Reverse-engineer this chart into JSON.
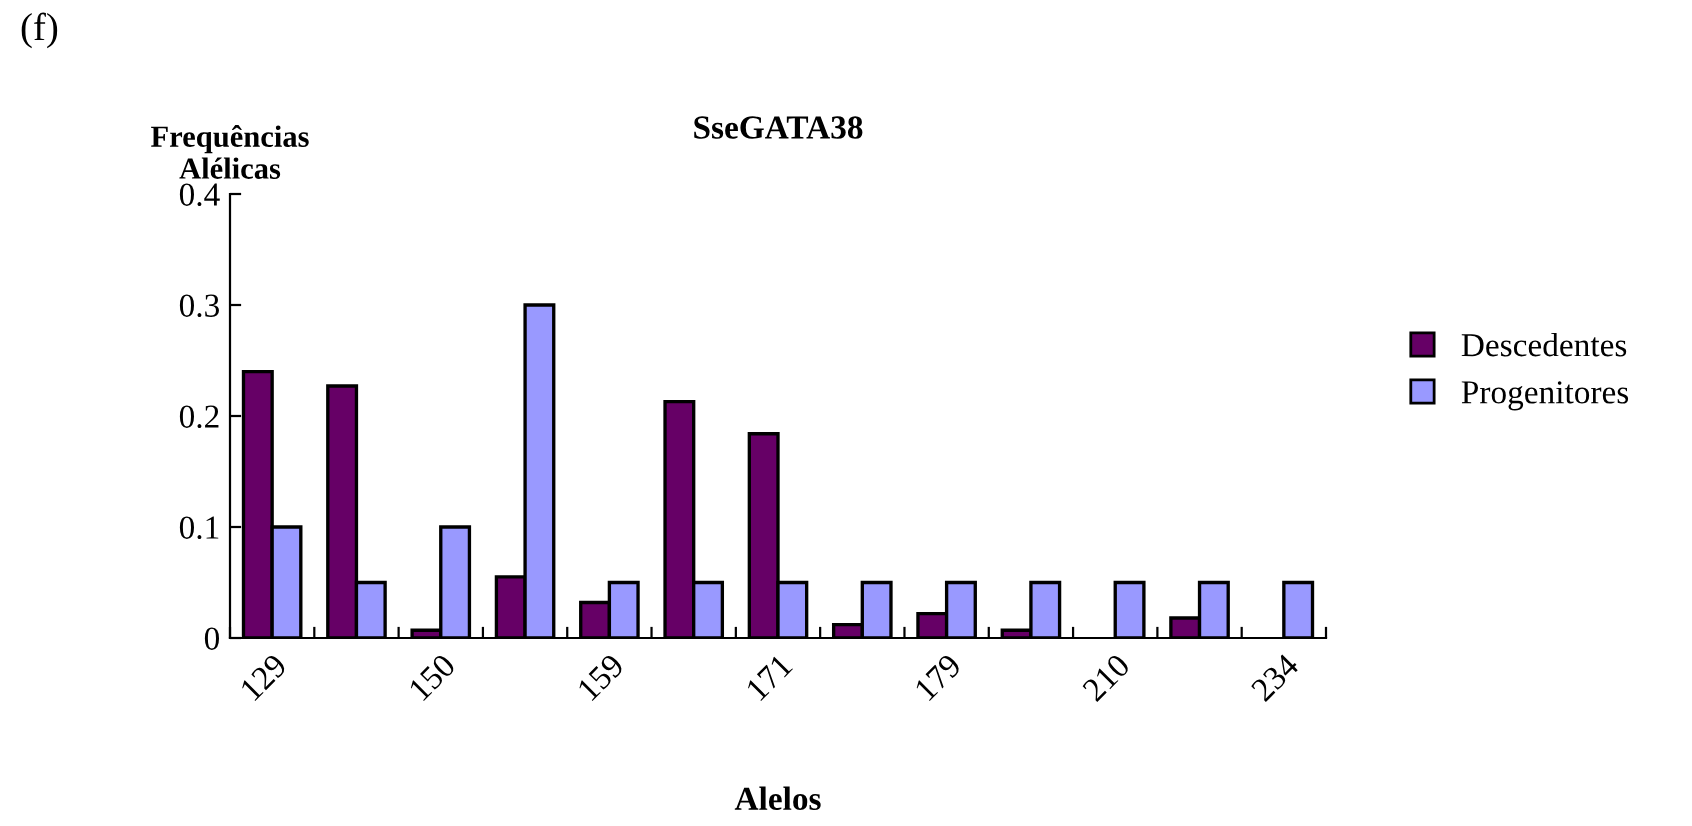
{
  "chart_data": {
    "type": "bar",
    "title": "SseGATA38",
    "xlabel": "Alelos",
    "ylabel": "Frequências\nAlélicas",
    "annotations": [
      "(f)"
    ],
    "categories": [
      "129",
      null,
      "150",
      null,
      "159",
      null,
      "171",
      null,
      "179",
      null,
      "210",
      null,
      "234"
    ],
    "series": [
      {
        "name": "Descedentes",
        "color": "#660066",
        "values": [
          0.24,
          0.227,
          0.007,
          0.055,
          0.032,
          0.213,
          0.184,
          0.012,
          0.022,
          0.007,
          0,
          0.018,
          0
        ]
      },
      {
        "name": "Progenitores",
        "color": "#9999ff",
        "values": [
          0.1,
          0.05,
          0.1,
          0.3,
          0.05,
          0.05,
          0.05,
          0.05,
          0.05,
          0.05,
          0.05,
          0.05,
          0.05
        ]
      }
    ],
    "ylim": [
      0,
      0.4
    ],
    "yticks": [
      0,
      0.1,
      0.2,
      0.3,
      0.4
    ],
    "grid": false,
    "legend": "right"
  }
}
